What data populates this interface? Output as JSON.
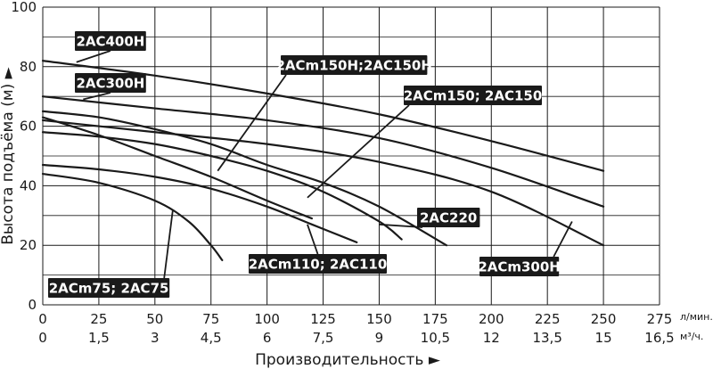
{
  "chart_data": {
    "type": "line",
    "title": "",
    "xlabel": "Производительность ►",
    "ylabel": "Высота подъёма (м) ►",
    "x_unit_primary": "л/мин.",
    "x_unit_secondary": "м³/ч.",
    "xlim": [
      0,
      275
    ],
    "ylim": [
      0,
      100
    ],
    "x_ticks": [
      "0",
      "25",
      "50",
      "75",
      "100",
      "125",
      "150",
      "175",
      "200",
      "225",
      "250",
      "275"
    ],
    "x_ticks_secondary": [
      "0",
      "1,5",
      "3",
      "4,5",
      "6",
      "7,5",
      "9",
      "10,5",
      "12",
      "13,5",
      "15",
      "16,5"
    ],
    "y_ticks": [
      "0",
      "20",
      "40",
      "60",
      "80",
      "100"
    ],
    "grid": true,
    "colors": {
      "curve": "#1a1a1a",
      "grid": "#1a1a1a",
      "label_bg": "#1a1a1a",
      "label_text": "#ffffff"
    },
    "series": [
      {
        "name": "2ACm75; 2AC75",
        "x": [
          0,
          25,
          50,
          65,
          75,
          80
        ],
        "y": [
          44,
          41,
          35,
          28,
          20,
          15
        ]
      },
      {
        "name": "2ACm110; 2AC110",
        "x": [
          0,
          25,
          50,
          75,
          100,
          120,
          140
        ],
        "y": [
          47,
          45.5,
          43,
          39,
          33,
          27,
          21
        ]
      },
      {
        "name": "2ACm150; 2AC150",
        "x": [
          0,
          25,
          50,
          75,
          100,
          120
        ],
        "y": [
          63,
          57,
          50,
          43,
          35,
          29
        ]
      },
      {
        "name": "2AC220",
        "x": [
          0,
          25,
          50,
          75,
          100,
          125,
          150,
          160
        ],
        "y": [
          58,
          56.5,
          54,
          50,
          45,
          38,
          28,
          22
        ]
      },
      {
        "name": "2ACm150H;2AC150H",
        "x": [
          0,
          25,
          50,
          75,
          100,
          125,
          150,
          180
        ],
        "y": [
          65,
          63,
          59,
          54,
          47,
          41,
          33,
          20
        ]
      },
      {
        "name": "2ACm300H",
        "x": [
          0,
          50,
          100,
          150,
          200,
          250
        ],
        "y": [
          62,
          58,
          54,
          48,
          38,
          20
        ]
      },
      {
        "name": "2AC300H",
        "x": [
          0,
          50,
          100,
          150,
          200,
          250
        ],
        "y": [
          70,
          66,
          62,
          56,
          46,
          33
        ]
      },
      {
        "name": "2AC400H",
        "x": [
          0,
          50,
          100,
          150,
          200,
          250
        ],
        "y": [
          82,
          77,
          71,
          64,
          55,
          45
        ]
      }
    ],
    "labels": [
      {
        "text": "2AC400H",
        "series": "2AC400H"
      },
      {
        "text": "2AC300H",
        "series": "2AC300H"
      },
      {
        "text": "2ACm150H;2AC150H",
        "series": "2ACm150H;2AC150H"
      },
      {
        "text": "2ACm150; 2AC150",
        "series": "2ACm150; 2AC150"
      },
      {
        "text": "2AC220",
        "series": "2AC220"
      },
      {
        "text": "2ACm110; 2AC110",
        "series": "2ACm110; 2AC110"
      },
      {
        "text": "2ACm300H",
        "series": "2ACm300H"
      },
      {
        "text": "2ACm75; 2AC75",
        "series": "2ACm75; 2AC75"
      }
    ]
  }
}
